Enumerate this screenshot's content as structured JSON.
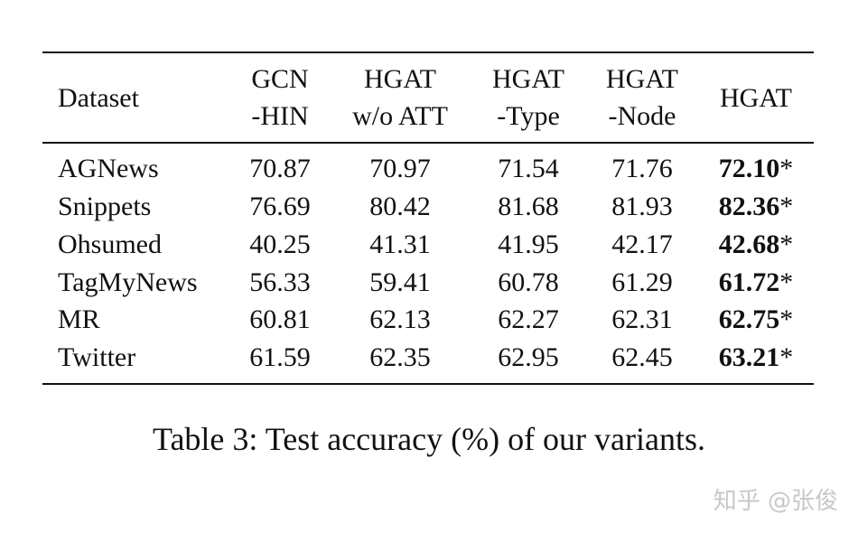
{
  "table": {
    "headers": [
      [
        "Dataset"
      ],
      [
        "GCN",
        "-HIN"
      ],
      [
        "HGAT",
        "w/o ATT"
      ],
      [
        "HGAT",
        "-Type"
      ],
      [
        "HGAT",
        "-Node"
      ],
      [
        "HGAT"
      ]
    ],
    "rows": [
      [
        "AGNews",
        "70.87",
        "70.97",
        "71.54",
        "71.76",
        "72.10",
        "*"
      ],
      [
        "Snippets",
        "76.69",
        "80.42",
        "81.68",
        "81.93",
        "82.36",
        "*"
      ],
      [
        "Ohsumed",
        "40.25",
        "41.31",
        "41.95",
        "42.17",
        "42.68",
        "*"
      ],
      [
        "TagMyNews",
        "56.33",
        "59.41",
        "60.78",
        "61.29",
        "61.72",
        "*"
      ],
      [
        "MR",
        "60.81",
        "62.13",
        "62.27",
        "62.31",
        "62.75",
        "*"
      ],
      [
        "Twitter",
        "61.59",
        "62.35",
        "62.95",
        "62.45",
        "63.21",
        "*"
      ]
    ]
  },
  "caption": "Table 3: Test accuracy (%) of our variants.",
  "watermark": "知乎 @张俊"
}
